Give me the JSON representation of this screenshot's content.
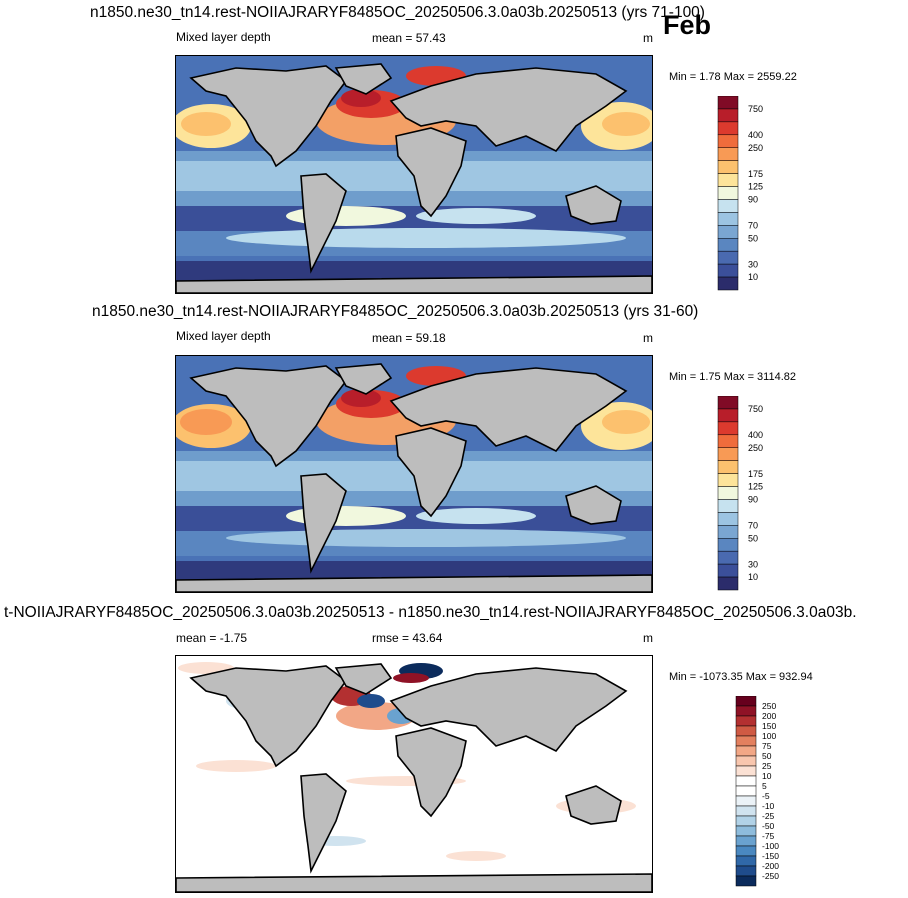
{
  "month_label": "Feb",
  "colors": {
    "land": "#bdbdbd",
    "coast": "#000000",
    "abs_scale": [
      "#2b2c6b",
      "#3b4f9a",
      "#4a6ab0",
      "#5a86c0",
      "#7aa6d2",
      "#9cc4e2",
      "#c6e2ef",
      "#f1f8de",
      "#fde49a",
      "#fcc16e",
      "#f89a55",
      "#ef6c3c",
      "#dc3a2e",
      "#b81e2a",
      "#800b26"
    ],
    "diff_scale": [
      "#0b2b5c",
      "#1f4c8c",
      "#3068a8",
      "#4a88c0",
      "#6aa2cf",
      "#8ebcdc",
      "#b1d2e7",
      "#d0e3ef",
      "#ebf2f7",
      "#ffffff",
      "#ffffff",
      "#fbe1d4",
      "#f8c6ae",
      "#f2a786",
      "#e3805f",
      "#cf5a44",
      "#b33031",
      "#8f1226",
      "#66001d"
    ]
  },
  "panels": [
    {
      "title": "n1850.ne30_tn14.rest-NOIIAJRARYF8485OC_20250506.3.0a03b.20250513 (yrs 71-100)",
      "left_label": "Mixed layer depth",
      "center_label": "mean =  57.43",
      "units": "m",
      "minmax": "Min =   1.78 Max = 2559.22"
    },
    {
      "title": "n1850.ne30_tn14.rest-NOIIAJRARYF8485OC_20250506.3.0a03b.20250513 (yrs 31-60)",
      "left_label": "Mixed layer depth",
      "center_label": "mean =  59.18",
      "units": "m",
      "minmax": "Min =   1.75 Max = 3114.82"
    },
    {
      "title": "t-NOIIAJRARYF8485OC_20250506.3.0a03b.20250513 - n1850.ne30_tn14.rest-NOIIAJRARYF8485OC_20250506.3.0a03b.",
      "left_label": "mean =  -1.75",
      "center_label": "rmse =  43.64",
      "units": "m",
      "minmax": "Min = -1073.35 Max = 932.94"
    }
  ],
  "chart_data": [
    {
      "type": "heatmap",
      "title": "n1850.ne30_tn14.rest-NOIIAJRARYF8485OC_20250506.3.0a03b.20250513 (yrs 71-100)",
      "variable": "Mixed layer depth",
      "units": "m",
      "mean": 57.43,
      "min": 1.78,
      "max": 2559.22,
      "colorbar_levels": [
        750,
        400,
        250,
        175,
        125,
        90,
        70,
        50,
        30,
        10
      ]
    },
    {
      "type": "heatmap",
      "title": "n1850.ne30_tn14.rest-NOIIAJRARYF8485OC_20250506.3.0a03b.20250513 (yrs 31-60)",
      "variable": "Mixed layer depth",
      "units": "m",
      "mean": 59.18,
      "min": 1.75,
      "max": 3114.82,
      "colorbar_levels": [
        750,
        400,
        250,
        175,
        125,
        90,
        70,
        50,
        30,
        10
      ]
    },
    {
      "type": "heatmap",
      "title": "t-NOIIAJRARYF8485OC_20250506.3.0a03b.20250513 - n1850.ne30_tn14.rest-NOIIAJRARYF8485OC_20250506.3.0a03b.",
      "units": "m",
      "mean": -1.75,
      "rmse": 43.64,
      "min": -1073.35,
      "max": 932.94,
      "colorbar_levels": [
        250,
        200,
        150,
        100,
        75,
        50,
        25,
        10,
        5,
        -5,
        -10,
        -25,
        -50,
        -75,
        -100,
        -150,
        -200,
        -250
      ]
    }
  ]
}
